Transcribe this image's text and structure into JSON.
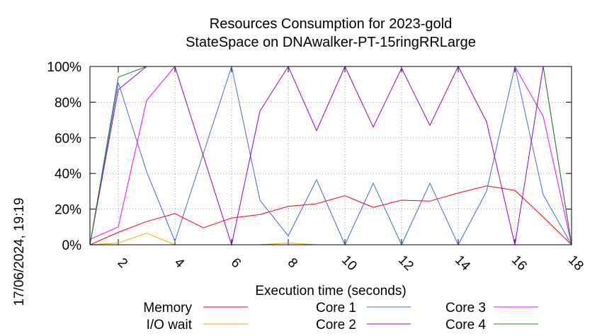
{
  "chart_data": {
    "type": "line",
    "title": "Resources Consumption for 2023-gold",
    "subtitle": "StateSpace on DNAwalker-PT-15ringRRLarge",
    "xlabel": "Execution time (seconds)",
    "ylabel": "",
    "side_label": "17/06/2024, 19:19",
    "xlim": [
      1,
      18
    ],
    "ylim": [
      0,
      100
    ],
    "xticks": [
      2,
      4,
      6,
      8,
      10,
      12,
      14,
      16,
      18
    ],
    "yticks": [
      0,
      20,
      40,
      60,
      80,
      100
    ],
    "ytick_labels": [
      "0%",
      "20%",
      "40%",
      "60%",
      "80%",
      "100%"
    ],
    "grid": true,
    "legend_position": "bottom",
    "series": [
      {
        "name": "Memory",
        "color": "#ff0000",
        "x": [
          1,
          2,
          3,
          4,
          5,
          6,
          7,
          8,
          9,
          10,
          11,
          12,
          13,
          14,
          15,
          16,
          17,
          18
        ],
        "y": [
          0,
          7,
          13,
          17.5,
          9.5,
          15,
          17,
          21.5,
          23,
          27.5,
          21,
          25,
          24.5,
          29,
          33,
          30.5,
          15.5,
          0
        ]
      },
      {
        "name": "I/O wait",
        "color": "#ffa500",
        "x": [
          1,
          2,
          3,
          4,
          5,
          6,
          7,
          8,
          9,
          10,
          11,
          12,
          13,
          14,
          15,
          16,
          17,
          18
        ],
        "y": [
          0,
          1,
          6.5,
          0,
          0,
          0,
          0,
          1,
          0,
          0,
          0,
          0,
          0,
          0,
          0,
          0,
          0,
          0
        ]
      },
      {
        "name": "Core 1",
        "color": "#4169e1",
        "x": [
          1,
          2,
          3,
          4,
          5,
          6,
          7,
          8,
          9,
          10,
          11,
          12,
          13,
          14,
          15,
          16,
          17,
          18
        ],
        "y": [
          0,
          91,
          41,
          2,
          51,
          100,
          25,
          5,
          36.5,
          0,
          34.5,
          0,
          34.5,
          0,
          30,
          100,
          28,
          0
        ]
      },
      {
        "name": "Core 2",
        "color": "#9400d3",
        "x": [
          1,
          2,
          3,
          4,
          5,
          6,
          7,
          8,
          9,
          10,
          11,
          12,
          13,
          14,
          15,
          16,
          17,
          18
        ],
        "y": [
          0,
          87,
          100,
          100,
          50,
          0,
          75,
          100,
          64,
          100,
          66,
          99,
          67,
          100,
          69,
          0,
          100,
          0
        ]
      },
      {
        "name": "Core 3",
        "color": "#ff00ff",
        "x": [
          1,
          2,
          3,
          4,
          5,
          6,
          7,
          8,
          9,
          10,
          11,
          12,
          13,
          14,
          15,
          16,
          17,
          18
        ],
        "y": [
          3,
          10,
          81,
          100,
          100,
          100,
          100,
          100,
          100,
          100,
          100,
          100,
          100,
          100,
          100,
          100,
          72,
          0
        ]
      },
      {
        "name": "Core 4",
        "color": "#228b22",
        "x": [
          1,
          2,
          3,
          4,
          5,
          6,
          7,
          8,
          9,
          10,
          11,
          12,
          13,
          14,
          15,
          16,
          17,
          18
        ],
        "y": [
          0,
          94,
          100,
          100,
          100,
          100,
          100,
          100,
          100,
          100,
          100,
          100,
          100,
          100,
          100,
          100,
          100,
          0
        ]
      }
    ]
  }
}
